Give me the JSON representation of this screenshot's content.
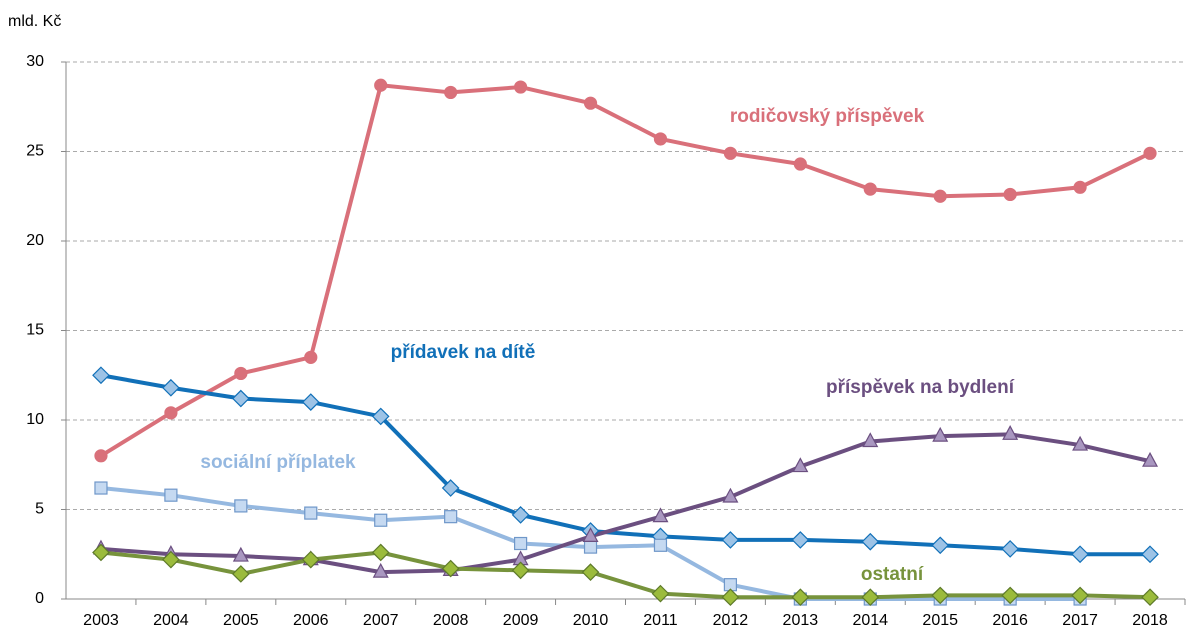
{
  "chart_data": {
    "type": "line",
    "y_label": "mld. Kč",
    "categories": [
      "2003",
      "2004",
      "2005",
      "2006",
      "2007",
      "2008",
      "2009",
      "2010",
      "2011",
      "2012",
      "2013",
      "2014",
      "2015",
      "2016",
      "2017",
      "2018"
    ],
    "ylim": [
      0,
      30
    ],
    "yticks": [
      0,
      5,
      10,
      15,
      20,
      25,
      30
    ],
    "grid": true,
    "series": [
      {
        "name": "rodičovský příspěvek",
        "color": "#d9707a",
        "marker": "circle",
        "values": [
          8.0,
          10.4,
          12.6,
          13.5,
          28.7,
          28.3,
          28.6,
          27.7,
          25.7,
          24.9,
          24.3,
          22.9,
          22.5,
          22.6,
          23.0,
          24.9
        ]
      },
      {
        "name": "přídavek na dítě",
        "color": "#1170b8",
        "marker": "diamond",
        "values": [
          12.5,
          11.8,
          11.2,
          11.0,
          10.2,
          6.2,
          4.7,
          3.8,
          3.5,
          3.3,
          3.3,
          3.2,
          3.0,
          2.8,
          2.5,
          2.5
        ]
      },
      {
        "name": "sociální příplatek",
        "color": "#95b8e0",
        "marker": "square",
        "values": [
          6.2,
          5.8,
          5.2,
          4.8,
          4.4,
          4.6,
          3.1,
          2.9,
          3.0,
          0.8,
          0.0,
          0.0,
          0.0,
          0.0,
          0.0,
          null
        ]
      },
      {
        "name": "příspěvek na bydlení",
        "color": "#6b4f80",
        "marker": "triangle",
        "values": [
          2.8,
          2.5,
          2.4,
          2.2,
          1.5,
          1.6,
          2.2,
          3.5,
          4.6,
          5.7,
          7.4,
          8.8,
          9.1,
          9.2,
          8.6,
          7.7
        ]
      },
      {
        "name": "ostatní",
        "color": "#77933c",
        "marker": "diamond",
        "values": [
          2.6,
          2.2,
          1.4,
          2.2,
          2.6,
          1.7,
          1.6,
          1.5,
          0.3,
          0.1,
          0.1,
          0.1,
          0.2,
          0.2,
          0.2,
          0.1
        ]
      }
    ]
  }
}
